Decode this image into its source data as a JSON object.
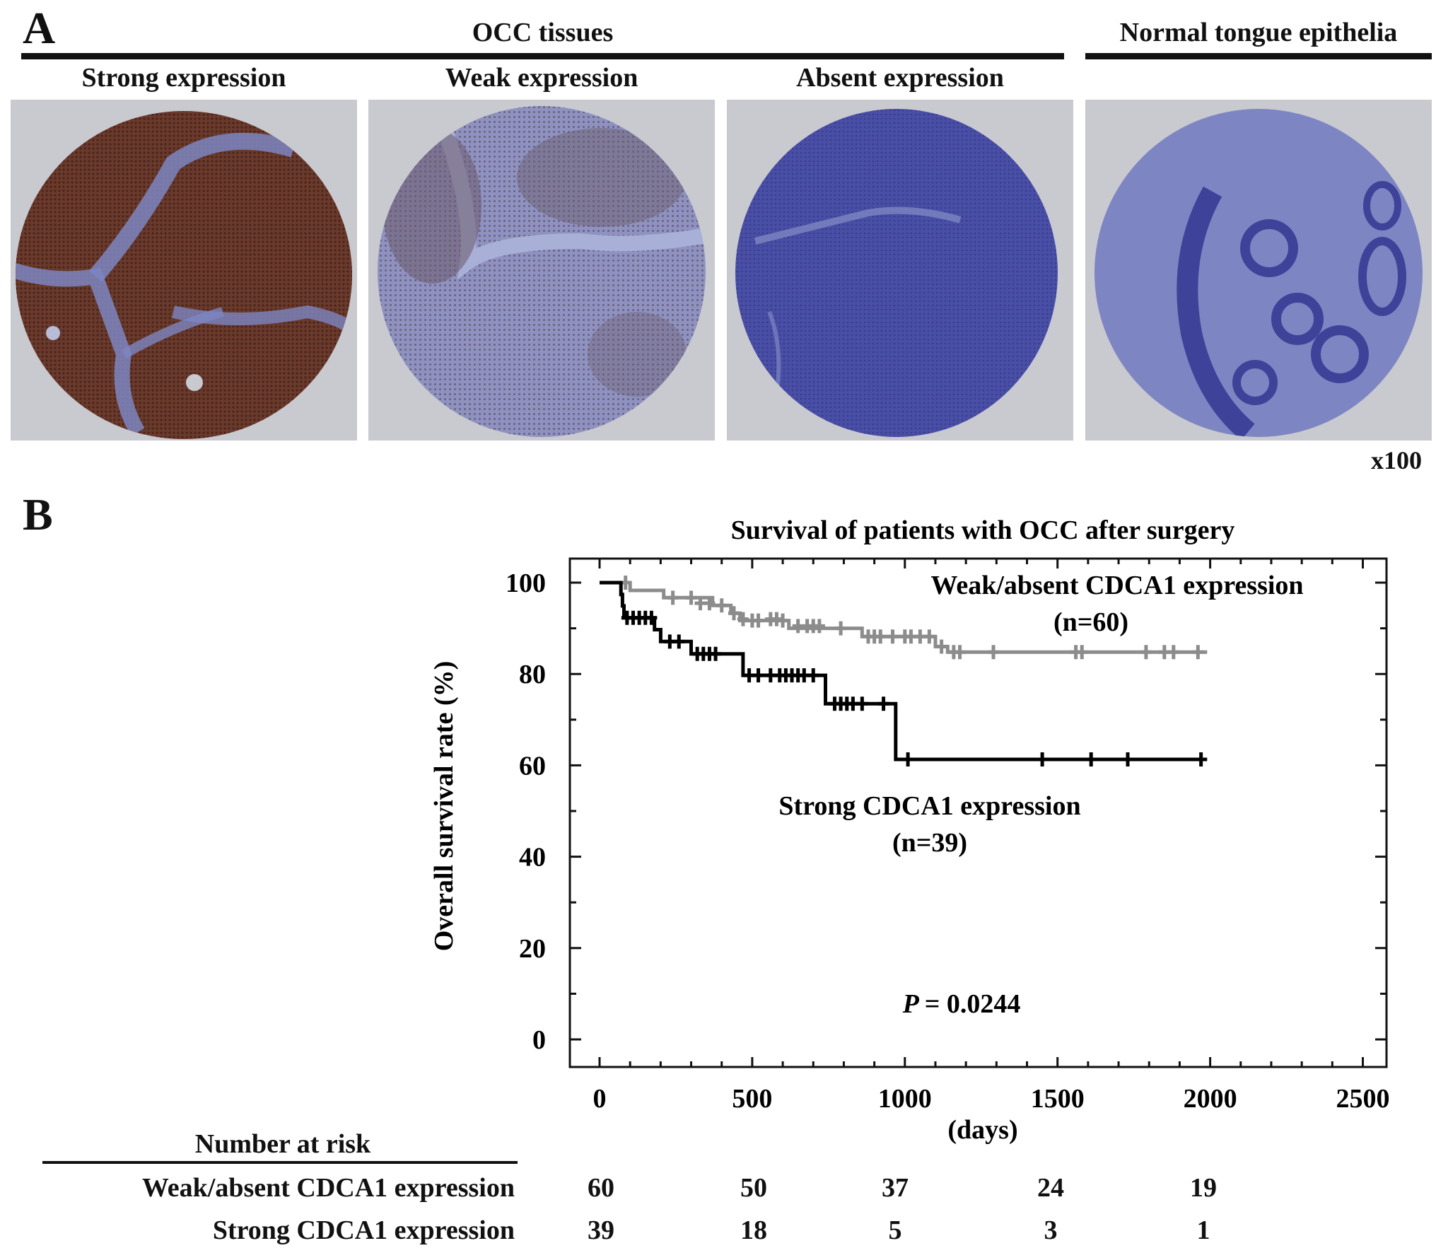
{
  "panel_a": {
    "letter": "A",
    "group_header": "OCC tissues",
    "normal_header": "Normal tongue epithelia",
    "cores": [
      {
        "label": "Strong expression",
        "stain": "strong"
      },
      {
        "label": "Weak expression",
        "stain": "weak"
      },
      {
        "label": "Absent expression",
        "stain": "absent"
      },
      {
        "label": "",
        "stain": "normal"
      }
    ],
    "magnification": "x100",
    "colors": {
      "background": "#c9c9d0",
      "dab_brown": "#5a2e22",
      "hematoxylin_blue": "#4a4fa6",
      "stroma_blue": "#7d86c2"
    }
  },
  "panel_b": {
    "letter": "B",
    "p_value_label": "P",
    "p_value_text": "= 0.0244"
  },
  "chart_data": {
    "type": "line",
    "title": "Survival of patients with OCC after surgery",
    "xlabel": "(days)",
    "ylabel": "Overall survival rate (%)",
    "xlim": [
      0,
      2500
    ],
    "ylim": [
      0,
      100
    ],
    "xticks": [
      0,
      500,
      1000,
      1500,
      2000,
      2500
    ],
    "yticks": [
      0,
      20,
      40,
      60,
      80,
      100
    ],
    "step": true,
    "series": [
      {
        "name": "Weak/absent CDCA1 expression",
        "n_label": "(n=60)",
        "color": "#8c8c8c",
        "steps": [
          [
            0,
            100
          ],
          [
            100,
            100
          ],
          [
            100,
            98.3
          ],
          [
            210,
            98.3
          ],
          [
            210,
            96.7
          ],
          [
            370,
            96.7
          ],
          [
            370,
            95
          ],
          [
            430,
            95
          ],
          [
            430,
            93.3
          ],
          [
            460,
            93.3
          ],
          [
            460,
            91.7
          ],
          [
            620,
            91.7
          ],
          [
            620,
            90
          ],
          [
            860,
            90
          ],
          [
            860,
            88.2
          ],
          [
            1100,
            88.2
          ],
          [
            1100,
            86
          ],
          [
            1140,
            86
          ],
          [
            1140,
            84.8
          ],
          [
            1990,
            84.8
          ]
        ],
        "censored": [
          [
            85,
            100
          ],
          [
            240,
            96.7
          ],
          [
            300,
            96.7
          ],
          [
            330,
            95.5
          ],
          [
            360,
            95.5
          ],
          [
            400,
            95
          ],
          [
            440,
            93.3
          ],
          [
            470,
            92
          ],
          [
            500,
            91.7
          ],
          [
            520,
            91.7
          ],
          [
            560,
            92
          ],
          [
            580,
            92
          ],
          [
            600,
            91.7
          ],
          [
            650,
            90.5
          ],
          [
            680,
            90.5
          ],
          [
            700,
            90.5
          ],
          [
            720,
            90.5
          ],
          [
            790,
            90
          ],
          [
            880,
            88.2
          ],
          [
            900,
            88.2
          ],
          [
            920,
            88.2
          ],
          [
            960,
            88.2
          ],
          [
            1000,
            88.2
          ],
          [
            1020,
            88.2
          ],
          [
            1050,
            88.2
          ],
          [
            1080,
            88.2
          ],
          [
            1120,
            86
          ],
          [
            1160,
            84.8
          ],
          [
            1180,
            84.8
          ],
          [
            1290,
            84.8
          ],
          [
            1560,
            84.8
          ],
          [
            1580,
            84.8
          ],
          [
            1790,
            84.8
          ],
          [
            1850,
            84.8
          ],
          [
            1880,
            84.8
          ],
          [
            1960,
            84.8
          ]
        ]
      },
      {
        "name": "Strong CDCA1 expression",
        "n_label": "(n=39)",
        "color": "#000000",
        "steps": [
          [
            0,
            100
          ],
          [
            70,
            100
          ],
          [
            70,
            97.4
          ],
          [
            75,
            97.4
          ],
          [
            75,
            94.9
          ],
          [
            80,
            94.9
          ],
          [
            80,
            92.3
          ],
          [
            180,
            92.3
          ],
          [
            180,
            89.7
          ],
          [
            200,
            89.7
          ],
          [
            200,
            87.1
          ],
          [
            300,
            87.1
          ],
          [
            300,
            84.4
          ],
          [
            470,
            84.4
          ],
          [
            470,
            79.7
          ],
          [
            740,
            79.7
          ],
          [
            740,
            73.5
          ],
          [
            970,
            73.5
          ],
          [
            970,
            61.3
          ],
          [
            1990,
            61.3
          ]
        ],
        "censored": [
          [
            90,
            92.3
          ],
          [
            110,
            92.3
          ],
          [
            130,
            92.3
          ],
          [
            150,
            92.3
          ],
          [
            170,
            92.3
          ],
          [
            230,
            87.1
          ],
          [
            260,
            87.1
          ],
          [
            320,
            84.4
          ],
          [
            340,
            84.4
          ],
          [
            360,
            84.4
          ],
          [
            380,
            84.4
          ],
          [
            490,
            79.7
          ],
          [
            520,
            79.7
          ],
          [
            560,
            79.7
          ],
          [
            590,
            79.7
          ],
          [
            610,
            79.7
          ],
          [
            630,
            79.7
          ],
          [
            650,
            79.7
          ],
          [
            670,
            79.7
          ],
          [
            700,
            79.7
          ],
          [
            770,
            73.5
          ],
          [
            790,
            73.5
          ],
          [
            810,
            73.5
          ],
          [
            830,
            73.5
          ],
          [
            860,
            73.5
          ],
          [
            930,
            73.5
          ],
          [
            1010,
            61.3
          ],
          [
            1450,
            61.3
          ],
          [
            1610,
            61.3
          ],
          [
            1730,
            61.3
          ],
          [
            1970,
            61.3
          ]
        ]
      }
    ],
    "annotations": [
      "P = 0.0244"
    ]
  },
  "risk_table": {
    "title": "Number at risk",
    "rows": [
      {
        "label": "Weak/absent CDCA1 expression",
        "values": [
          "60",
          "50",
          "37",
          "24",
          "19"
        ]
      },
      {
        "label": "Strong CDCA1 expression",
        "values": [
          "39",
          "18",
          "5",
          "3",
          "1"
        ]
      }
    ]
  }
}
